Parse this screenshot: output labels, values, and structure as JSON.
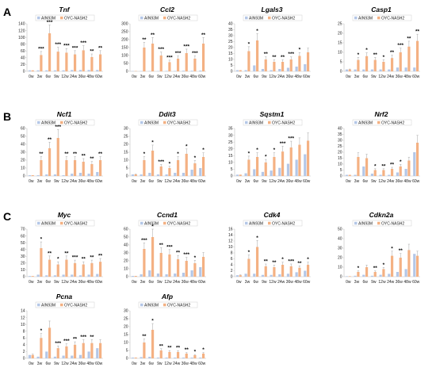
{
  "panel_letters": [
    "A",
    "B",
    "C"
  ],
  "legend": [
    "AIN93M",
    "OYC-NASH2"
  ],
  "colors": {
    "AIN93M": "#b4c7e7",
    "OYC-NASH2": "#f4b183",
    "error": "#a6a6a6",
    "axis": "#bfbfbf"
  },
  "chart_data": [
    {
      "type": "bar",
      "title": "Tnf",
      "ylim": [
        0,
        140
      ],
      "yticks": [
        0,
        20,
        40,
        60,
        80,
        100,
        120,
        140
      ],
      "categories": [
        "0w",
        "3w",
        "6w",
        "9w",
        "12w",
        "24w",
        "36w",
        "48w",
        "60w"
      ],
      "series": [
        {
          "name": "AIN93M",
          "values": [
            3,
            3,
            3,
            3,
            3,
            4,
            4,
            4,
            4
          ]
        },
        {
          "name": "OYC-NASH2",
          "values": [
            3,
            48,
            112,
            58,
            55,
            50,
            62,
            42,
            50
          ]
        }
      ],
      "significance": [
        "",
        "***",
        "***",
        "***",
        "***",
        "***",
        "***",
        "**",
        "**"
      ]
    },
    {
      "type": "bar",
      "title": "Ccl2",
      "ylim": [
        0,
        300
      ],
      "yticks": [
        0,
        50,
        100,
        150,
        200,
        250,
        300
      ],
      "categories": [
        "0w",
        "3w",
        "6w",
        "9w",
        "12w",
        "24w",
        "36w",
        "48w",
        "60w"
      ],
      "series": [
        {
          "name": "AIN93M",
          "values": [
            2,
            2,
            2,
            2,
            3,
            3,
            4,
            4,
            5
          ]
        },
        {
          "name": "OYC-NASH2",
          "values": [
            2,
            150,
            175,
            100,
            58,
            80,
            115,
            80,
            175
          ]
        }
      ],
      "significance": [
        "",
        "**",
        "**",
        "***",
        "***",
        "***",
        "***",
        "***",
        "**"
      ]
    },
    {
      "type": "bar",
      "title": "Lgals3",
      "ylim": [
        0,
        40
      ],
      "yticks": [
        0,
        5,
        10,
        15,
        20,
        25,
        30,
        35,
        40
      ],
      "categories": [
        "0w",
        "3w",
        "6w",
        "9w",
        "12w",
        "24w",
        "36w",
        "48w",
        "60w"
      ],
      "series": [
        {
          "name": "AIN93M",
          "values": [
            1,
            1,
            5,
            2,
            1,
            2,
            3,
            4,
            6
          ]
        },
        {
          "name": "OYC-NASH2",
          "values": [
            1,
            17,
            26,
            10,
            8,
            8,
            10,
            13,
            16
          ]
        }
      ],
      "significance": [
        "",
        "*",
        "*",
        "**",
        "**",
        "**",
        "***",
        "*",
        ""
      ]
    },
    {
      "type": "bar",
      "title": "Casp1",
      "ylim": [
        0,
        25
      ],
      "yticks": [
        0,
        5,
        10,
        15,
        20,
        25
      ],
      "categories": [
        "0w",
        "3w",
        "6w",
        "9w",
        "12w",
        "24w",
        "36w",
        "48w",
        "60w"
      ],
      "series": [
        {
          "name": "AIN93M",
          "values": [
            1,
            1,
            1,
            1,
            1,
            1,
            2,
            2,
            2
          ]
        },
        {
          "name": "OYC-NASH2",
          "values": [
            1,
            6,
            8,
            6,
            5,
            7,
            10,
            13,
            16
          ]
        }
      ],
      "significance": [
        "",
        "*",
        "*",
        "**",
        "*",
        "**",
        "***",
        "**",
        "**"
      ]
    },
    {
      "type": "bar",
      "title": "Ncf1",
      "ylim": [
        0,
        60
      ],
      "yticks": [
        0,
        10,
        20,
        30,
        40,
        50,
        60
      ],
      "categories": [
        "0w",
        "3w",
        "6w",
        "9w",
        "12w",
        "24w",
        "36w",
        "48w",
        "60w"
      ],
      "series": [
        {
          "name": "AIN93M",
          "values": [
            1,
            1,
            2,
            2,
            1,
            3,
            4,
            3,
            5
          ]
        },
        {
          "name": "OYC-NASH2",
          "values": [
            1,
            20,
            35,
            48,
            20,
            20,
            18,
            15,
            20
          ]
        }
      ],
      "significance": [
        "",
        "**",
        "**",
        "***",
        "**",
        "**",
        "**",
        "**",
        "**"
      ]
    },
    {
      "type": "bar",
      "title": "Ddit3",
      "ylim": [
        0,
        30
      ],
      "yticks": [
        0,
        5,
        10,
        15,
        20,
        25,
        30
      ],
      "categories": [
        "0w",
        "3w",
        "6w",
        "9w",
        "12w",
        "24w",
        "36w",
        "48w",
        "60w"
      ],
      "series": [
        {
          "name": "AIN93M",
          "values": [
            1,
            1,
            2,
            1,
            1,
            2,
            2,
            4,
            5
          ]
        },
        {
          "name": "OYC-NASH2",
          "values": [
            1,
            10,
            16,
            6,
            5,
            10,
            14,
            8,
            12
          ]
        }
      ],
      "significance": [
        "",
        "*",
        "*",
        "***",
        "*",
        "*",
        "*",
        "*",
        "*"
      ]
    },
    {
      "type": "bar",
      "title": "Sqstm1",
      "ylim": [
        0,
        35
      ],
      "yticks": [
        0,
        5,
        10,
        15,
        20,
        25,
        30,
        35
      ],
      "categories": [
        "0w",
        "3w",
        "6w",
        "9w",
        "12w",
        "24w",
        "36w",
        "48w",
        "60w"
      ],
      "series": [
        {
          "name": "AIN93M",
          "values": [
            1,
            2,
            5,
            3,
            4,
            6,
            9,
            12,
            16
          ]
        },
        {
          "name": "OYC-NASH2",
          "values": [
            1,
            12,
            14,
            10,
            14,
            18,
            21,
            23,
            26
          ]
        }
      ],
      "significance": [
        "",
        "*",
        "*",
        "*",
        "*",
        "***",
        "***",
        "",
        ""
      ]
    },
    {
      "type": "bar",
      "title": "Nrf2",
      "ylim": [
        0,
        40
      ],
      "yticks": [
        0,
        5,
        10,
        15,
        20,
        25,
        30,
        35,
        40
      ],
      "categories": [
        "0w",
        "3w",
        "6w",
        "9w",
        "12w",
        "24w",
        "36w",
        "48w",
        "60w"
      ],
      "series": [
        {
          "name": "AIN93M",
          "values": [
            1,
            1,
            8,
            2,
            1,
            1,
            3,
            6,
            20
          ]
        },
        {
          "name": "OYC-NASH2",
          "values": [
            1,
            16,
            15,
            5,
            5,
            6,
            8,
            13,
            28
          ]
        }
      ],
      "significance": [
        "",
        "",
        "",
        "*",
        "**",
        "**",
        "*",
        "",
        ""
      ]
    },
    {
      "type": "bar",
      "title": "Myc",
      "ylim": [
        0,
        70
      ],
      "yticks": [
        0,
        10,
        20,
        30,
        40,
        50,
        60,
        70
      ],
      "categories": [
        "0w",
        "3w",
        "6w",
        "9w",
        "12w",
        "24w",
        "36w",
        "48w",
        "60w"
      ],
      "series": [
        {
          "name": "AIN93M",
          "values": [
            1,
            3,
            2,
            2,
            3,
            3,
            2,
            3,
            4
          ]
        },
        {
          "name": "OYC-NASH2",
          "values": [
            1,
            42,
            25,
            18,
            25,
            20,
            18,
            20,
            22
          ]
        }
      ],
      "significance": [
        "",
        "*",
        "**",
        "*",
        "**",
        "***",
        "**",
        "**",
        "**"
      ]
    },
    {
      "type": "bar",
      "title": "Ccnd1",
      "ylim": [
        0,
        60
      ],
      "yticks": [
        0,
        10,
        20,
        30,
        40,
        50,
        60
      ],
      "categories": [
        "0w",
        "3w",
        "6w",
        "9w",
        "12w",
        "24w",
        "36w",
        "48w",
        "60w"
      ],
      "series": [
        {
          "name": "AIN93M",
          "values": [
            1,
            3,
            8,
            4,
            3,
            4,
            5,
            8,
            12
          ]
        },
        {
          "name": "OYC-NASH2",
          "values": [
            1,
            35,
            50,
            30,
            28,
            22,
            20,
            17,
            25
          ]
        }
      ],
      "significance": [
        "",
        "***",
        "*",
        "**",
        "***",
        "**",
        "***",
        "*",
        ""
      ]
    },
    {
      "type": "bar",
      "title": "Cdk4",
      "ylim": [
        0,
        16
      ],
      "yticks": [
        0,
        2,
        4,
        6,
        8,
        10,
        12,
        14,
        16
      ],
      "categories": [
        "0w",
        "3w",
        "6w",
        "9w",
        "12w",
        "24w",
        "36w",
        "48w",
        "60w"
      ],
      "series": [
        {
          "name": "AIN93M",
          "values": [
            0.5,
            1,
            1,
            0.6,
            0.6,
            0.8,
            1,
            1.5,
            2
          ]
        },
        {
          "name": "OYC-NASH2",
          "values": [
            0.5,
            6,
            10,
            3.5,
            3.2,
            4,
            3.5,
            3,
            4
          ]
        }
      ],
      "significance": [
        "",
        "*",
        "*",
        "**",
        "**",
        "*",
        "***",
        "**",
        "*"
      ]
    },
    {
      "type": "bar",
      "title": "Cdkn2a",
      "ylim": [
        0,
        50
      ],
      "yticks": [
        0,
        10,
        20,
        30,
        40,
        50
      ],
      "categories": [
        "0w",
        "3w",
        "6w",
        "9w",
        "12w",
        "24w",
        "36w",
        "48w",
        "60w"
      ],
      "series": [
        {
          "name": "AIN93M",
          "values": [
            0.5,
            1,
            2,
            1,
            2,
            3,
            5,
            8,
            24
          ]
        },
        {
          "name": "OYC-NASH2",
          "values": [
            0.5,
            5,
            10,
            5,
            8,
            22,
            20,
            28,
            22
          ]
        }
      ],
      "significance": [
        "",
        "*",
        "",
        "**",
        "*",
        "*",
        "**",
        "",
        ""
      ]
    },
    {
      "type": "bar",
      "title": "Pcna",
      "ylim": [
        0,
        14
      ],
      "yticks": [
        0,
        2,
        4,
        6,
        8,
        10,
        12,
        14
      ],
      "categories": [
        "0w",
        "3w",
        "6w",
        "9w",
        "12w",
        "24w",
        "36w",
        "48w",
        "60w"
      ],
      "series": [
        {
          "name": "AIN93M",
          "values": [
            1,
            0.5,
            2,
            0.5,
            0.8,
            0.8,
            1,
            2,
            3
          ]
        },
        {
          "name": "OYC-NASH2",
          "values": [
            1,
            6,
            9,
            3,
            3.5,
            4,
            4.5,
            4.5,
            4.5
          ]
        }
      ],
      "significance": [
        "",
        "*",
        "",
        "***",
        "***",
        "**",
        "***",
        "**",
        ""
      ]
    },
    {
      "type": "bar",
      "title": "Afp",
      "ylim": [
        0,
        30
      ],
      "yticks": [
        0,
        5,
        10,
        15,
        20,
        25,
        30
      ],
      "categories": [
        "0w",
        "3w",
        "6w",
        "9w",
        "12w",
        "24w",
        "36w",
        "48w",
        "60w"
      ],
      "series": [
        {
          "name": "AIN93M",
          "values": [
            0.5,
            0.8,
            1,
            0.5,
            0.5,
            0.5,
            0.5,
            0.5,
            0.5
          ]
        },
        {
          "name": "OYC-NASH2",
          "values": [
            0.5,
            10,
            18,
            5,
            4,
            4,
            3,
            2,
            3
          ]
        }
      ],
      "significance": [
        "",
        "**",
        "*",
        "**",
        "**",
        "**",
        "**",
        "*",
        "*"
      ]
    }
  ]
}
